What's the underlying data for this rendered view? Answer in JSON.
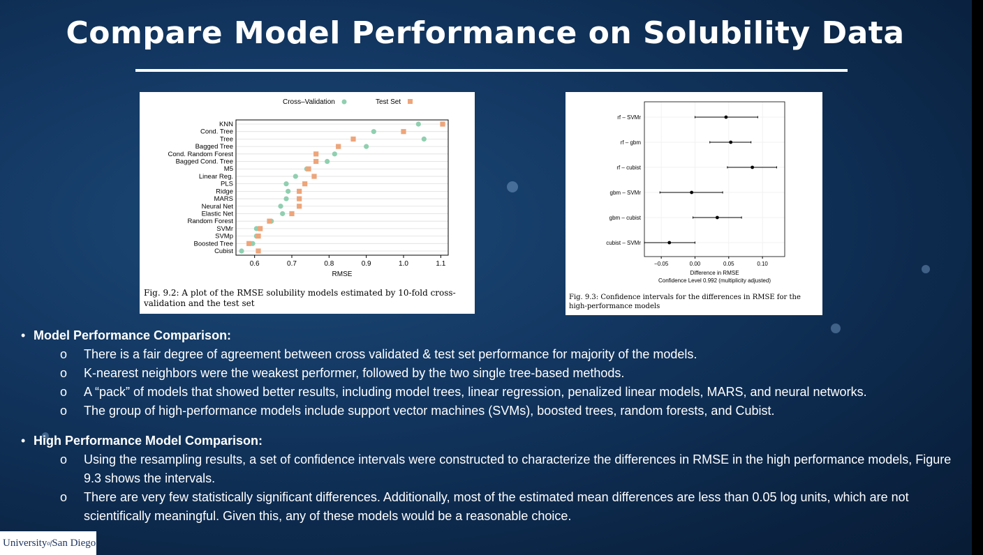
{
  "slide": {
    "title": "Compare Model Performance on Solubility Data"
  },
  "figure1": {
    "caption": "Fig. 9.2: A plot of the RMSE solubility models estimated by 10-fold cross-validation and the test set"
  },
  "figure2": {
    "caption": "Fig. 9.3: Confidence intervals for the differences in RMSE for the high-performance models"
  },
  "chart_data": [
    {
      "type": "scatter",
      "xlabel": "RMSE",
      "xlim": [
        0.55,
        1.12
      ],
      "xticks": [
        "0.6",
        "0.7",
        "0.8",
        "0.9",
        "1.0",
        "1.1"
      ],
      "legend_position": "top",
      "grid": true,
      "categories": [
        "KNN",
        "Cond. Tree",
        "Tree",
        "Bagged Tree",
        "Cond. Random Forest",
        "Bagged Cond. Tree",
        "M5",
        "Linear Reg.",
        "PLS",
        "Ridge",
        "MARS",
        "Neural Net",
        "Elastic Net",
        "Random Forest",
        "SVMr",
        "SVMp",
        "Boosted Tree",
        "Cubist"
      ],
      "series": [
        {
          "name": "Cross–Validation",
          "marker": "circle",
          "color": "#8fcfb0",
          "values": [
            1.04,
            0.92,
            1.055,
            0.9,
            0.815,
            0.795,
            0.74,
            0.71,
            0.685,
            0.69,
            0.685,
            0.67,
            0.675,
            0.645,
            0.605,
            0.605,
            0.595,
            0.565
          ]
        },
        {
          "name": "Test Set",
          "marker": "square",
          "color": "#eda57a",
          "values": [
            1.105,
            1.0,
            0.865,
            0.825,
            0.765,
            0.765,
            0.745,
            0.76,
            0.735,
            0.72,
            0.72,
            0.72,
            0.7,
            0.64,
            0.615,
            0.61,
            0.585,
            0.61
          ]
        }
      ]
    },
    {
      "type": "scatter",
      "xlabel": "Difference in RMSE",
      "subtitle": "Confidence Level 0.992  (multiplicity adjusted)",
      "xlim": [
        -0.075,
        0.133
      ],
      "xticks": [
        "−0.05",
        "0.00",
        "0.05",
        "0.10"
      ],
      "grid": true,
      "categories": [
        "rf – SVMr",
        "rf – gbm",
        "rf – cubist",
        "gbm – SVMr",
        "gbm – cubist",
        "cubist – SVMr"
      ],
      "estimate": [
        0.046,
        0.053,
        0.085,
        -0.005,
        0.033,
        -0.038
      ],
      "lower": [
        0.0,
        0.022,
        0.048,
        -0.052,
        -0.003,
        -0.075
      ],
      "upper": [
        0.093,
        0.083,
        0.121,
        0.041,
        0.069,
        0.0
      ]
    }
  ],
  "bullets": [
    {
      "heading": "Model Performance Comparison:",
      "items": [
        "There is a fair degree of agreement between cross validated & test set performance for majority of the models.",
        "K-nearest neighbors were the weakest performer, followed by the two single tree-based methods.",
        "A “pack” of models that showed better results, including model trees, linear regression, penalized linear models, MARS, and neural networks.",
        "The group of high-performance models include support vector machines (SVMs), boosted trees, random forests, and Cubist."
      ]
    },
    {
      "heading": "High Performance Model Comparison:",
      "items": [
        "Using the resampling results, a set of confidence intervals were constructed to characterize the differences in RMSE in the high performance models, Figure 9.3 shows the intervals.",
        "There are very few statistically significant differences. Additionally, most of the estimated mean differences are less than 0.05 log units, which are not scientifically meaningful. Given this, any of these models would be a reasonable choice."
      ]
    }
  ],
  "bullet_marks": {
    "main": "•",
    "sub": "o"
  },
  "logo": {
    "part1": "University",
    "part2": "of",
    "part3": "San Diego"
  }
}
